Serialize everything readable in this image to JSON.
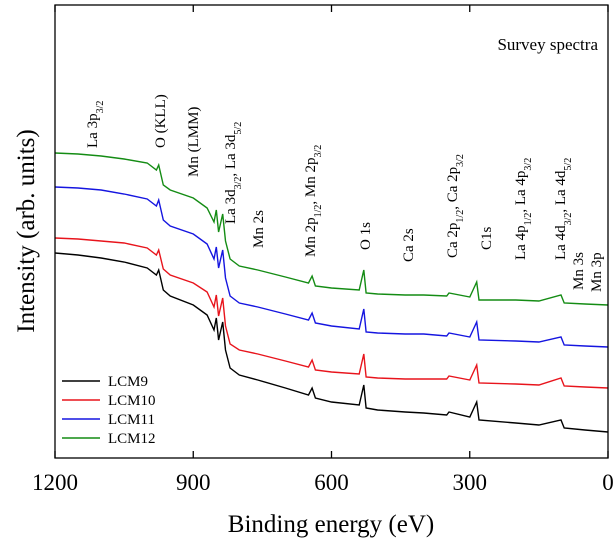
{
  "chart_data": {
    "type": "line",
    "title": "Survey spectra",
    "x_label": "Binding energy (eV)",
    "y_label": "Intensity (arb. units)",
    "xlim": [
      1200,
      0
    ],
    "xticks": [
      1200,
      900,
      600,
      300,
      0
    ],
    "ylim": [
      0,
      453
    ],
    "x": [
      1200,
      1150,
      1100,
      1050,
      1000,
      980,
      975,
      965,
      950,
      900,
      870,
      855,
      850,
      845,
      836,
      830,
      820,
      800,
      760,
      700,
      650,
      642,
      635,
      600,
      540,
      530,
      525,
      500,
      440,
      400,
      350,
      345,
      300,
      285,
      280,
      200,
      150,
      102,
      95,
      50,
      0
    ],
    "series": [
      {
        "name": "LCM9",
        "color": "#000000",
        "values": [
          205,
          203,
          200,
          196,
          190,
          183,
          188,
          168,
          162,
          153,
          143,
          128,
          140,
          118,
          136,
          108,
          90,
          83,
          78,
          70,
          63,
          70,
          60,
          56,
          53,
          73,
          50,
          48,
          46,
          45,
          43,
          46,
          41,
          56,
          38,
          35,
          33,
          38,
          30,
          28,
          26
        ]
      },
      {
        "name": "LCM10",
        "color": "#e8141c",
        "values": [
          220,
          219,
          217,
          215,
          210,
          203,
          208,
          189,
          183,
          175,
          166,
          151,
          163,
          142,
          160,
          132,
          114,
          108,
          104,
          97,
          91,
          98,
          88,
          86,
          84,
          104,
          81,
          80,
          79,
          79,
          79,
          82,
          78,
          93,
          75,
          74,
          73,
          80,
          72,
          71,
          70
        ]
      },
      {
        "name": "LCM11",
        "color": "#1515e0",
        "values": [
          271,
          270,
          268,
          264,
          259,
          252,
          258,
          238,
          232,
          224,
          214,
          199,
          211,
          190,
          208,
          180,
          162,
          155,
          151,
          144,
          138,
          145,
          135,
          132,
          129,
          149,
          126,
          125,
          124,
          124,
          122,
          125,
          121,
          136,
          118,
          117,
          116,
          121,
          113,
          112,
          111
        ]
      },
      {
        "name": "LCM12",
        "color": "#148c14",
        "values": [
          305,
          304,
          302,
          299,
          295,
          288,
          293,
          273,
          268,
          260,
          250,
          236,
          248,
          226,
          244,
          217,
          199,
          192,
          188,
          181,
          175,
          182,
          172,
          170,
          168,
          188,
          165,
          164,
          163,
          163,
          162,
          165,
          161,
          176,
          158,
          158,
          157,
          163,
          155,
          154,
          153
        ]
      }
    ],
    "annotations": [
      [
        "La 3p",
        "3/2"
      ],
      [
        "O (KLL)"
      ],
      [
        "Mn (LMM)"
      ],
      [
        "La 3d",
        "3/2",
        ", La 3d",
        "5/2"
      ],
      [
        "Mn 2s"
      ],
      [
        "Mn 2p",
        "1/2",
        ", Mn 2p",
        "3/2"
      ],
      [
        "O 1s"
      ],
      [
        "Ca 2s"
      ],
      [
        "Ca 2p",
        "1/2",
        ", Ca 2p",
        "3/2"
      ],
      [
        "C1s"
      ],
      [
        "La 4p",
        "1/2",
        ", La 4p",
        "3/2"
      ],
      [
        "La 4d",
        "3/2",
        ", La 4d",
        "5/2"
      ],
      [
        "Mn 3s"
      ],
      [
        "Mn 3p"
      ]
    ],
    "legend": "lower left"
  }
}
